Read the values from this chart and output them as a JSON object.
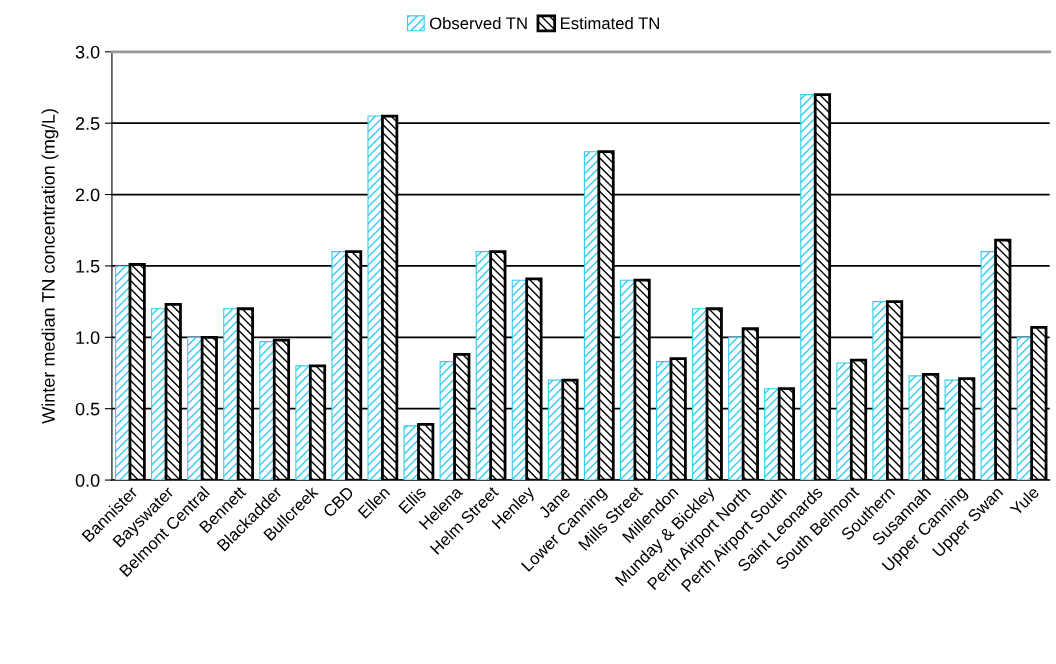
{
  "chart_data": {
    "type": "bar",
    "ylabel": "Winter median TN concentration (mg/L)",
    "categories": [
      "Bannister",
      "Bayswater",
      "Belmont Central",
      "Bennett",
      "Blackadder",
      "Bullcreek",
      "CBD",
      "Ellen",
      "Ellis",
      "Helena",
      "Helm Street",
      "Henley",
      "Jane",
      "Lower Canning",
      "Mills Street",
      "Millendon",
      "Munday & Bickley",
      "Perth Airport North",
      "Perth Airport South",
      "Saint Leonards",
      "South Belmont",
      "Southern",
      "Susannah",
      "Upper Canning",
      "Upper Swan",
      "Yule"
    ],
    "series": [
      {
        "name": "Observed TN",
        "color": "#33ccee",
        "values": [
          1.5,
          1.2,
          1.0,
          1.2,
          0.97,
          0.8,
          1.6,
          2.55,
          0.38,
          0.83,
          1.6,
          1.4,
          0.7,
          2.3,
          1.4,
          0.83,
          1.2,
          1.0,
          0.64,
          2.7,
          0.82,
          1.25,
          0.73,
          0.7,
          1.6,
          1.0
        ]
      },
      {
        "name": "Estimated TN",
        "color": "#000000",
        "values": [
          1.51,
          1.23,
          1.0,
          1.2,
          0.98,
          0.8,
          1.6,
          2.55,
          0.39,
          0.88,
          1.6,
          1.41,
          0.7,
          2.3,
          1.4,
          0.85,
          1.2,
          1.06,
          0.64,
          2.7,
          0.84,
          1.25,
          0.74,
          0.71,
          1.68,
          1.07
        ]
      }
    ],
    "ylim": [
      0,
      3.0
    ],
    "yticks": [
      {
        "value": 0,
        "label": "0.0"
      },
      {
        "value": 0.5,
        "label": "0.5"
      },
      {
        "value": 1.0,
        "label": "1.0"
      },
      {
        "value": 1.5,
        "label": "1.5"
      },
      {
        "value": 2.0,
        "label": "2.0"
      },
      {
        "value": 2.5,
        "label": "2.5"
      },
      {
        "value": 3.0,
        "label": "3.0"
      }
    ],
    "grid": "y",
    "legend": "top"
  }
}
